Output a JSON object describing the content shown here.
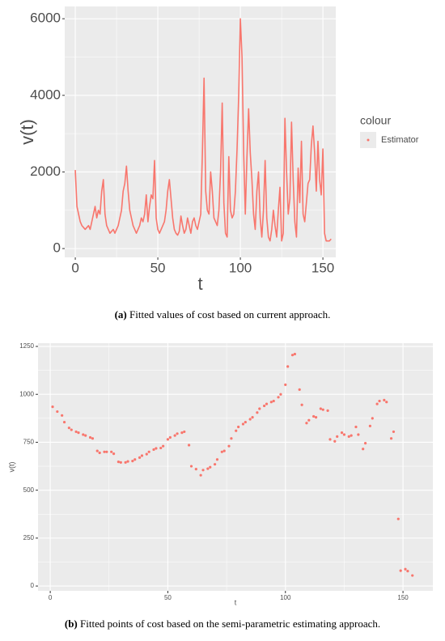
{
  "chart_data": [
    {
      "type": "line",
      "xlabel": "t",
      "ylabel": "v(t)",
      "caption": {
        "label": "(a)",
        "text": " Fitted values of cost based on current approach."
      },
      "legend_title": "colour",
      "legend_position": "right",
      "xlim": [
        -6.4,
        157.8
      ],
      "ylim": [
        -230,
        6320
      ],
      "xticks": [
        0,
        50,
        100,
        150
      ],
      "yticks": [
        0,
        2000,
        4000,
        6000
      ],
      "minor_xticks": [
        25,
        75,
        125
      ],
      "minor_yticks": [
        1000,
        3000,
        5000
      ],
      "grid": true,
      "series": [
        {
          "name": "Estimator",
          "color": "#F8766D",
          "x": [
            0,
            1,
            2,
            3,
            4,
            5,
            6,
            7,
            8,
            9,
            10,
            11,
            12,
            13,
            14,
            15,
            16,
            17,
            18,
            19,
            20,
            21,
            22,
            23,
            24,
            25,
            26,
            27,
            28,
            29,
            30,
            31,
            32,
            33,
            34,
            35,
            36,
            37,
            38,
            39,
            40,
            41,
            42,
            43,
            44,
            45,
            46,
            47,
            48,
            49,
            50,
            51,
            52,
            53,
            54,
            55,
            56,
            57,
            58,
            59,
            60,
            61,
            62,
            63,
            64,
            65,
            66,
            67,
            68,
            69,
            70,
            71,
            72,
            73,
            74,
            75,
            76,
            77,
            78,
            79,
            80,
            81,
            82,
            83,
            84,
            85,
            86,
            87,
            88,
            89,
            90,
            91,
            92,
            93,
            94,
            95,
            96,
            97,
            98,
            99,
            100,
            101,
            102,
            103,
            104,
            105,
            106,
            107,
            108,
            109,
            110,
            111,
            112,
            113,
            114,
            115,
            116,
            117,
            118,
            119,
            120,
            121,
            122,
            123,
            124,
            125,
            126,
            127,
            128,
            129,
            130,
            131,
            132,
            133,
            134,
            135,
            136,
            137,
            138,
            139,
            140,
            141,
            142,
            143,
            144,
            145,
            146,
            147,
            148,
            149,
            150,
            151,
            152,
            153,
            154,
            155
          ],
          "values": [
            2050,
            1100,
            900,
            700,
            600,
            550,
            500,
            550,
            600,
            500,
            700,
            900,
            1100,
            800,
            1000,
            900,
            1500,
            1800,
            900,
            600,
            500,
            400,
            450,
            500,
            400,
            500,
            600,
            800,
            1000,
            1500,
            1700,
            2150,
            1500,
            1000,
            800,
            600,
            500,
            400,
            500,
            600,
            800,
            700,
            900,
            1400,
            700,
            1100,
            1400,
            1300,
            2300,
            800,
            500,
            400,
            500,
            600,
            700,
            1000,
            1500,
            1800,
            1300,
            800,
            500,
            400,
            350,
            450,
            850,
            600,
            400,
            500,
            800,
            600,
            400,
            700,
            800,
            600,
            500,
            700,
            900,
            2500,
            4450,
            1500,
            1000,
            900,
            2000,
            1500,
            800,
            700,
            600,
            1000,
            2000,
            3800,
            1200,
            400,
            300,
            2400,
            1000,
            800,
            900,
            1500,
            2600,
            4000,
            6000,
            5000,
            2500,
            900,
            2400,
            3650,
            2500,
            1800,
            900,
            500,
            1500,
            2000,
            800,
            300,
            1000,
            2300,
            800,
            300,
            200,
            500,
            1000,
            600,
            300,
            1000,
            1600,
            200,
            400,
            3400,
            2000,
            900,
            1300,
            3300,
            1800,
            700,
            300,
            2100,
            1200,
            2800,
            900,
            700,
            1200,
            1700,
            1800,
            2700,
            3200,
            2500,
            1500,
            2800,
            1800,
            1400,
            2600,
            400,
            200,
            200,
            200,
            250
          ]
        }
      ]
    },
    {
      "type": "scatter",
      "xlabel": "t",
      "ylabel": "v(t)",
      "caption": {
        "label": "(b)",
        "text": " Fitted points of cost based on the semi-parametric estimating approach."
      },
      "xlim": [
        -5.2,
        162.7
      ],
      "ylim": [
        -25,
        1267
      ],
      "xticks": [
        0,
        50,
        100,
        150
      ],
      "yticks": [
        0,
        250,
        500,
        750,
        1000,
        1250
      ],
      "minor_xticks": [
        25,
        75,
        125
      ],
      "minor_yticks": [
        125,
        375,
        625,
        875,
        1125
      ],
      "grid": true,
      "series": [
        {
          "color": "#F8766D",
          "x": [
            1,
            3,
            5,
            6,
            8,
            9,
            11,
            12,
            14,
            15,
            17,
            18,
            20,
            21,
            23,
            24,
            26,
            27,
            29,
            30,
            32,
            33,
            35,
            36,
            38,
            39,
            41,
            42,
            44,
            45,
            47,
            48,
            50,
            51,
            53,
            54,
            56,
            57,
            59,
            60,
            62,
            64,
            65,
            67,
            68,
            70,
            71,
            73,
            74,
            76,
            77,
            79,
            80,
            82,
            83,
            85,
            86,
            88,
            89,
            91,
            92,
            94,
            95,
            97,
            98,
            100,
            101,
            103,
            104,
            106,
            107,
            109,
            110,
            112,
            113,
            115,
            116,
            118,
            119,
            121,
            122,
            124,
            125,
            127,
            128,
            130,
            131,
            133,
            134,
            136,
            137,
            139,
            140,
            142,
            143,
            145,
            146,
            148,
            149,
            151,
            152,
            154
          ],
          "values": [
            935,
            910,
            890,
            855,
            825,
            815,
            805,
            800,
            790,
            785,
            775,
            770,
            705,
            695,
            700,
            700,
            700,
            690,
            648,
            645,
            645,
            650,
            652,
            660,
            670,
            680,
            688,
            700,
            712,
            718,
            720,
            730,
            765,
            775,
            785,
            795,
            800,
            805,
            735,
            625,
            610,
            578,
            605,
            612,
            620,
            635,
            660,
            700,
            705,
            730,
            770,
            810,
            830,
            845,
            855,
            870,
            880,
            905,
            925,
            940,
            950,
            960,
            965,
            985,
            1000,
            1050,
            1145,
            1205,
            1210,
            1025,
            945,
            850,
            865,
            885,
            880,
            925,
            920,
            915,
            765,
            755,
            780,
            800,
            790,
            780,
            785,
            830,
            790,
            715,
            745,
            835,
            875,
            950,
            965,
            970,
            960,
            770,
            805,
            350,
            80,
            88,
            78,
            55
          ]
        }
      ]
    }
  ]
}
